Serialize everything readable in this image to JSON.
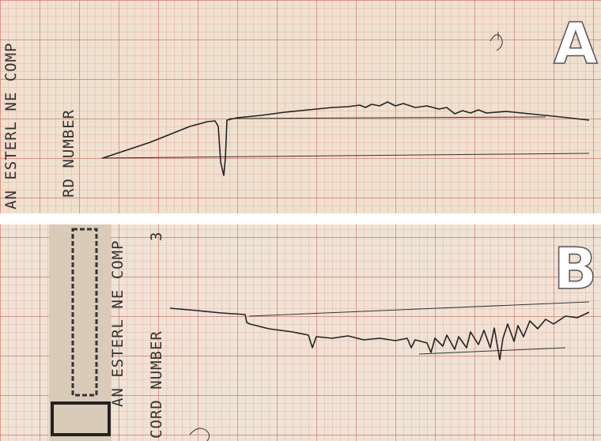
{
  "panels": [
    {
      "label": "A",
      "margin_texts": [
        "AN ESTERL NE COMP",
        "RD NUMBER"
      ]
    },
    {
      "label": "B",
      "margin_texts": [
        "AN ESTERL NE COMP",
        "CORD NUMBER",
        "3"
      ]
    }
  ]
}
